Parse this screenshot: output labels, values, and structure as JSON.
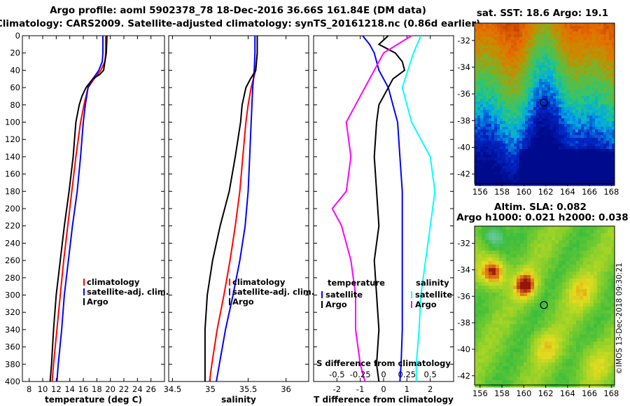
{
  "title_line1": "Argo profile: aoml 5902378_78 18-Dec-2016 36.66S 161.84E (DM data)",
  "title_line2": "Climatology: CARS2009. Satellite-adjusted climatology: synTS_20161218.nc (0.86d earlier)",
  "sst_title": "sat. SST: 18.6 Argo: 19.1",
  "sla_title1": "Altim. SLA: 0.082",
  "sla_title2": "Argo h1000: 0.021 h2000: 0.038",
  "watermark": "©IMOS 13-Dec-2018 09:30:21",
  "colors": {
    "climatology": "#ff0000",
    "satellite_adj": "#0000ff",
    "argo": "#000000",
    "sat_diff": "#00ffff",
    "argo_s_diff": "#ff00ff"
  },
  "chart_data": [
    {
      "type": "line",
      "name": "temperature",
      "xlabel": "temperature (deg C)",
      "ylabel": "depth",
      "xlim": [
        7,
        28
      ],
      "ylim": [
        400,
        0
      ],
      "xticks": [
        8,
        10,
        12,
        14,
        16,
        18,
        20,
        22,
        24,
        26
      ],
      "yticks": [
        0,
        20,
        40,
        60,
        80,
        100,
        120,
        140,
        160,
        180,
        200,
        220,
        240,
        260,
        280,
        300,
        320,
        340,
        360,
        380,
        400
      ],
      "legend": [
        "climatology",
        "satellite-adj. clim.",
        "Argo"
      ],
      "series": [
        {
          "name": "climatology",
          "color": "#ff0000",
          "depth": [
            0,
            20,
            30,
            40,
            50,
            60,
            80,
            100,
            140,
            180,
            220,
            260,
            300,
            340,
            380,
            400
          ],
          "values": [
            19.3,
            19.3,
            19.2,
            18.6,
            17.6,
            16.7,
            16.1,
            15.6,
            14.9,
            14.3,
            13.7,
            13.1,
            12.6,
            12.1,
            11.6,
            11.4
          ]
        },
        {
          "name": "satellite-adj. clim.",
          "color": "#0000ff",
          "depth": [
            0,
            20,
            30,
            40,
            50,
            60,
            80,
            100,
            140,
            180,
            220,
            260,
            300,
            340,
            380,
            400
          ],
          "values": [
            18.9,
            18.9,
            18.8,
            18.3,
            17.4,
            16.7,
            16.3,
            16.0,
            15.6,
            15.1,
            14.4,
            13.8,
            13.2,
            12.8,
            12.3,
            12.1
          ]
        },
        {
          "name": "Argo",
          "color": "#000000",
          "depth": [
            0,
            20,
            30,
            40,
            45,
            50,
            60,
            70,
            80,
            100,
            140,
            180,
            220,
            260,
            300,
            340,
            380,
            400
          ],
          "values": [
            19.5,
            19.4,
            19.2,
            19.0,
            18.4,
            17.4,
            16.4,
            15.8,
            15.4,
            14.9,
            14.5,
            13.9,
            13.2,
            12.6,
            12.0,
            11.6,
            11.3,
            11.1
          ]
        }
      ]
    },
    {
      "type": "line",
      "name": "salinity",
      "xlabel": "salinity",
      "ylabel": "depth",
      "xlim": [
        34.45,
        36.3
      ],
      "ylim": [
        400,
        0
      ],
      "xticks": [
        34.5,
        35,
        35.5,
        36
      ],
      "xtick_labels": [
        "34.5",
        "35",
        "35.5",
        "36"
      ],
      "legend": [
        "climatology",
        "satellite-adj. clim.",
        "Argo"
      ],
      "series": [
        {
          "name": "climatology",
          "color": "#ff0000",
          "depth": [
            0,
            20,
            40,
            60,
            80,
            100,
            140,
            180,
            220,
            260,
            300,
            340,
            380,
            400
          ],
          "values": [
            35.62,
            35.62,
            35.6,
            35.54,
            35.5,
            35.47,
            35.43,
            35.39,
            35.33,
            35.26,
            35.18,
            35.09,
            35.02,
            34.99
          ]
        },
        {
          "name": "satellite-adj. clim.",
          "color": "#0000ff",
          "depth": [
            0,
            20,
            40,
            60,
            80,
            100,
            140,
            180,
            220,
            260,
            300,
            340,
            380,
            400
          ],
          "values": [
            35.59,
            35.59,
            35.58,
            35.56,
            35.55,
            35.54,
            35.52,
            35.5,
            35.46,
            35.39,
            35.3,
            35.2,
            35.12,
            35.08
          ]
        },
        {
          "name": "Argo",
          "color": "#000000",
          "depth": [
            0,
            20,
            40,
            50,
            60,
            80,
            100,
            140,
            180,
            220,
            260,
            300,
            340,
            380,
            400
          ],
          "values": [
            35.62,
            35.62,
            35.6,
            35.53,
            35.47,
            35.42,
            35.4,
            35.33,
            35.25,
            35.13,
            35.03,
            34.96,
            34.93,
            34.93,
            34.93
          ]
        }
      ]
    },
    {
      "type": "line",
      "name": "difference from climatology",
      "xlabel": "T difference from climatology",
      "xlabel_top": "S difference from climatology",
      "xlim": [
        -3,
        3
      ],
      "ylim": [
        400,
        0
      ],
      "xticks": [
        -2,
        -1,
        0,
        1,
        2
      ],
      "xtick_labels": [
        "-2",
        "-1",
        "0",
        "1",
        "2"
      ],
      "xticks_s": [
        -0.5,
        -0.25,
        0,
        0.25,
        0.5
      ],
      "xtick_s_labels": [
        "-0.5",
        "-0.25",
        "0",
        "0.25",
        "0.5"
      ],
      "legend_t_title": "temperature",
      "legend_s_title": "salinity",
      "legend_t": [
        "satellite",
        "Argo"
      ],
      "legend_s": [
        "satellite",
        "Argo"
      ],
      "series": [
        {
          "name": "T satellite",
          "color": "#0000ff",
          "depth": [
            0,
            10,
            20,
            40,
            60,
            80,
            100,
            140,
            180,
            220,
            260,
            300,
            340,
            380,
            400
          ],
          "values": [
            -0.9,
            -0.6,
            -0.4,
            -0.2,
            0.2,
            0.4,
            0.6,
            0.7,
            0.8,
            0.8,
            0.8,
            0.8,
            0.8,
            0.75,
            0.7
          ]
        },
        {
          "name": "T Argo",
          "color": "#000000",
          "depth": [
            0,
            10,
            20,
            30,
            40,
            50,
            60,
            80,
            100,
            140,
            180,
            220,
            260,
            300,
            340,
            380,
            400
          ],
          "values": [
            0.2,
            -0.2,
            0.5,
            0.8,
            0.9,
            0.4,
            0.2,
            -0.2,
            -0.3,
            -0.4,
            -0.3,
            -0.2,
            -0.4,
            -0.3,
            -0.2,
            -0.3,
            -0.2
          ]
        },
        {
          "name": "S satellite",
          "color": "#00ffff",
          "depth": [
            0,
            20,
            60,
            100,
            140,
            180,
            220,
            260,
            300,
            340,
            380,
            400
          ],
          "values": [
            0.4,
            0.32,
            0.2,
            0.3,
            0.5,
            0.55,
            0.5,
            0.45,
            0.4,
            0.38,
            0.35,
            0.35
          ]
        },
        {
          "name": "S Argo",
          "color": "#ff00ff",
          "depth": [
            0,
            20,
            40,
            60,
            80,
            100,
            140,
            180,
            200,
            220,
            260,
            300,
            340,
            380,
            400
          ],
          "values": [
            0.3,
            0.0,
            -0.1,
            -0.2,
            -0.3,
            -0.4,
            -0.35,
            -0.4,
            -0.55,
            -0.45,
            -0.35,
            -0.3,
            -0.3,
            -0.25,
            -0.2
          ]
        }
      ]
    },
    {
      "type": "heatmap",
      "name": "sat. SST map",
      "xlim": [
        155.5,
        168.3
      ],
      "ylim": [
        -42.7,
        -30.7
      ],
      "xticks": [
        156,
        158,
        160,
        162,
        164,
        166,
        168
      ],
      "yticks": [
        -32,
        -34,
        -36,
        -38,
        -40,
        -42
      ],
      "marker_lon": 161.84,
      "marker_lat": -36.66
    },
    {
      "type": "heatmap",
      "name": "Altim. SLA map",
      "xlim": [
        155.5,
        168.3
      ],
      "ylim": [
        -42.7,
        -30.7
      ],
      "xticks": [
        156,
        158,
        160,
        162,
        164,
        166,
        168
      ],
      "yticks": [
        -32,
        -34,
        -36,
        -38,
        -40,
        -42
      ],
      "marker_lon": 161.84,
      "marker_lat": -36.66
    }
  ]
}
